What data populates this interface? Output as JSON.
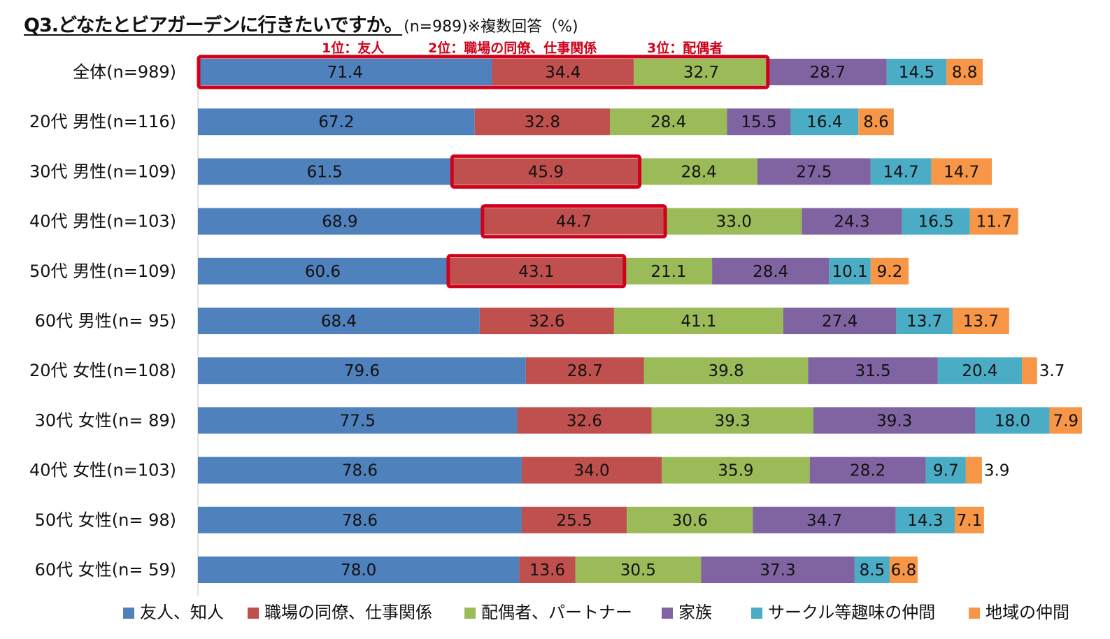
{
  "title": {
    "main": "Q3.どなたとビアガーデンに行きたいですか。",
    "sub": "(n=989)※複数回答（%)"
  },
  "ranking_note": [
    "1位：友人",
    "2位：職場の同僚、仕事関係",
    "3位：配偶者"
  ],
  "colors": {
    "friend": "#4f81bd",
    "coworker": "#c0504d",
    "spouse": "#9bbb59",
    "family": "#8064a2",
    "circle": "#4bacc6",
    "local": "#f79646",
    "highlight": "#d0021b"
  },
  "chart_data": {
    "type": "bar",
    "orientation": "horizontal",
    "stacked": true,
    "title": "Q3.どなたとビアガーデンに行きたいですか。(n=989)※複数回答（%)",
    "xlabel": "",
    "ylabel": "",
    "unit": "%",
    "grid": false,
    "legend_position": "bottom",
    "categories": [
      "全体(n=989)",
      "20代 男性(n=116)",
      "30代 男性(n=109)",
      "40代 男性(n=103)",
      "50代 男性(n=109)",
      "60代 男性(n=  95)",
      "20代 女性(n=108)",
      "30代 女性(n=  89)",
      "40代 女性(n=103)",
      "50代 女性(n=  98)",
      "60代 女性(n=  59)"
    ],
    "series": [
      {
        "name": "友人、知人",
        "color_key": "friend",
        "values": [
          71.4,
          67.2,
          61.5,
          68.9,
          60.6,
          68.4,
          79.6,
          77.5,
          78.6,
          78.6,
          78.0
        ]
      },
      {
        "name": "職場の同僚、仕事関係",
        "color_key": "coworker",
        "values": [
          34.4,
          32.8,
          45.9,
          44.7,
          43.1,
          32.6,
          28.7,
          32.6,
          34.0,
          25.5,
          13.6
        ]
      },
      {
        "name": "配偶者、パートナー",
        "color_key": "spouse",
        "values": [
          32.7,
          28.4,
          28.4,
          33.0,
          21.1,
          41.1,
          39.8,
          39.3,
          35.9,
          30.6,
          30.5
        ]
      },
      {
        "name": "家族",
        "color_key": "family",
        "values": [
          28.7,
          15.5,
          27.5,
          24.3,
          28.4,
          27.4,
          31.5,
          39.3,
          28.2,
          34.7,
          37.3
        ]
      },
      {
        "name": "サークル等趣味の仲間",
        "color_key": "circle",
        "values": [
          14.5,
          16.4,
          14.7,
          16.5,
          10.1,
          13.7,
          20.4,
          18.0,
          9.7,
          14.3,
          8.5
        ]
      },
      {
        "name": "地域の仲間",
        "color_key": "local",
        "values": [
          8.8,
          8.6,
          14.7,
          11.7,
          9.2,
          13.7,
          3.7,
          7.9,
          3.9,
          7.1,
          6.8
        ]
      }
    ],
    "highlights": [
      {
        "category_index": 0,
        "series_from": 0,
        "series_to": 2
      },
      {
        "category_index": 2,
        "series_from": 1,
        "series_to": 1
      },
      {
        "category_index": 3,
        "series_from": 1,
        "series_to": 1
      },
      {
        "category_index": 4,
        "series_from": 1,
        "series_to": 1
      }
    ],
    "outside_labels": [
      {
        "category_index": 6,
        "series_index": 5
      },
      {
        "category_index": 8,
        "series_index": 5
      }
    ]
  }
}
